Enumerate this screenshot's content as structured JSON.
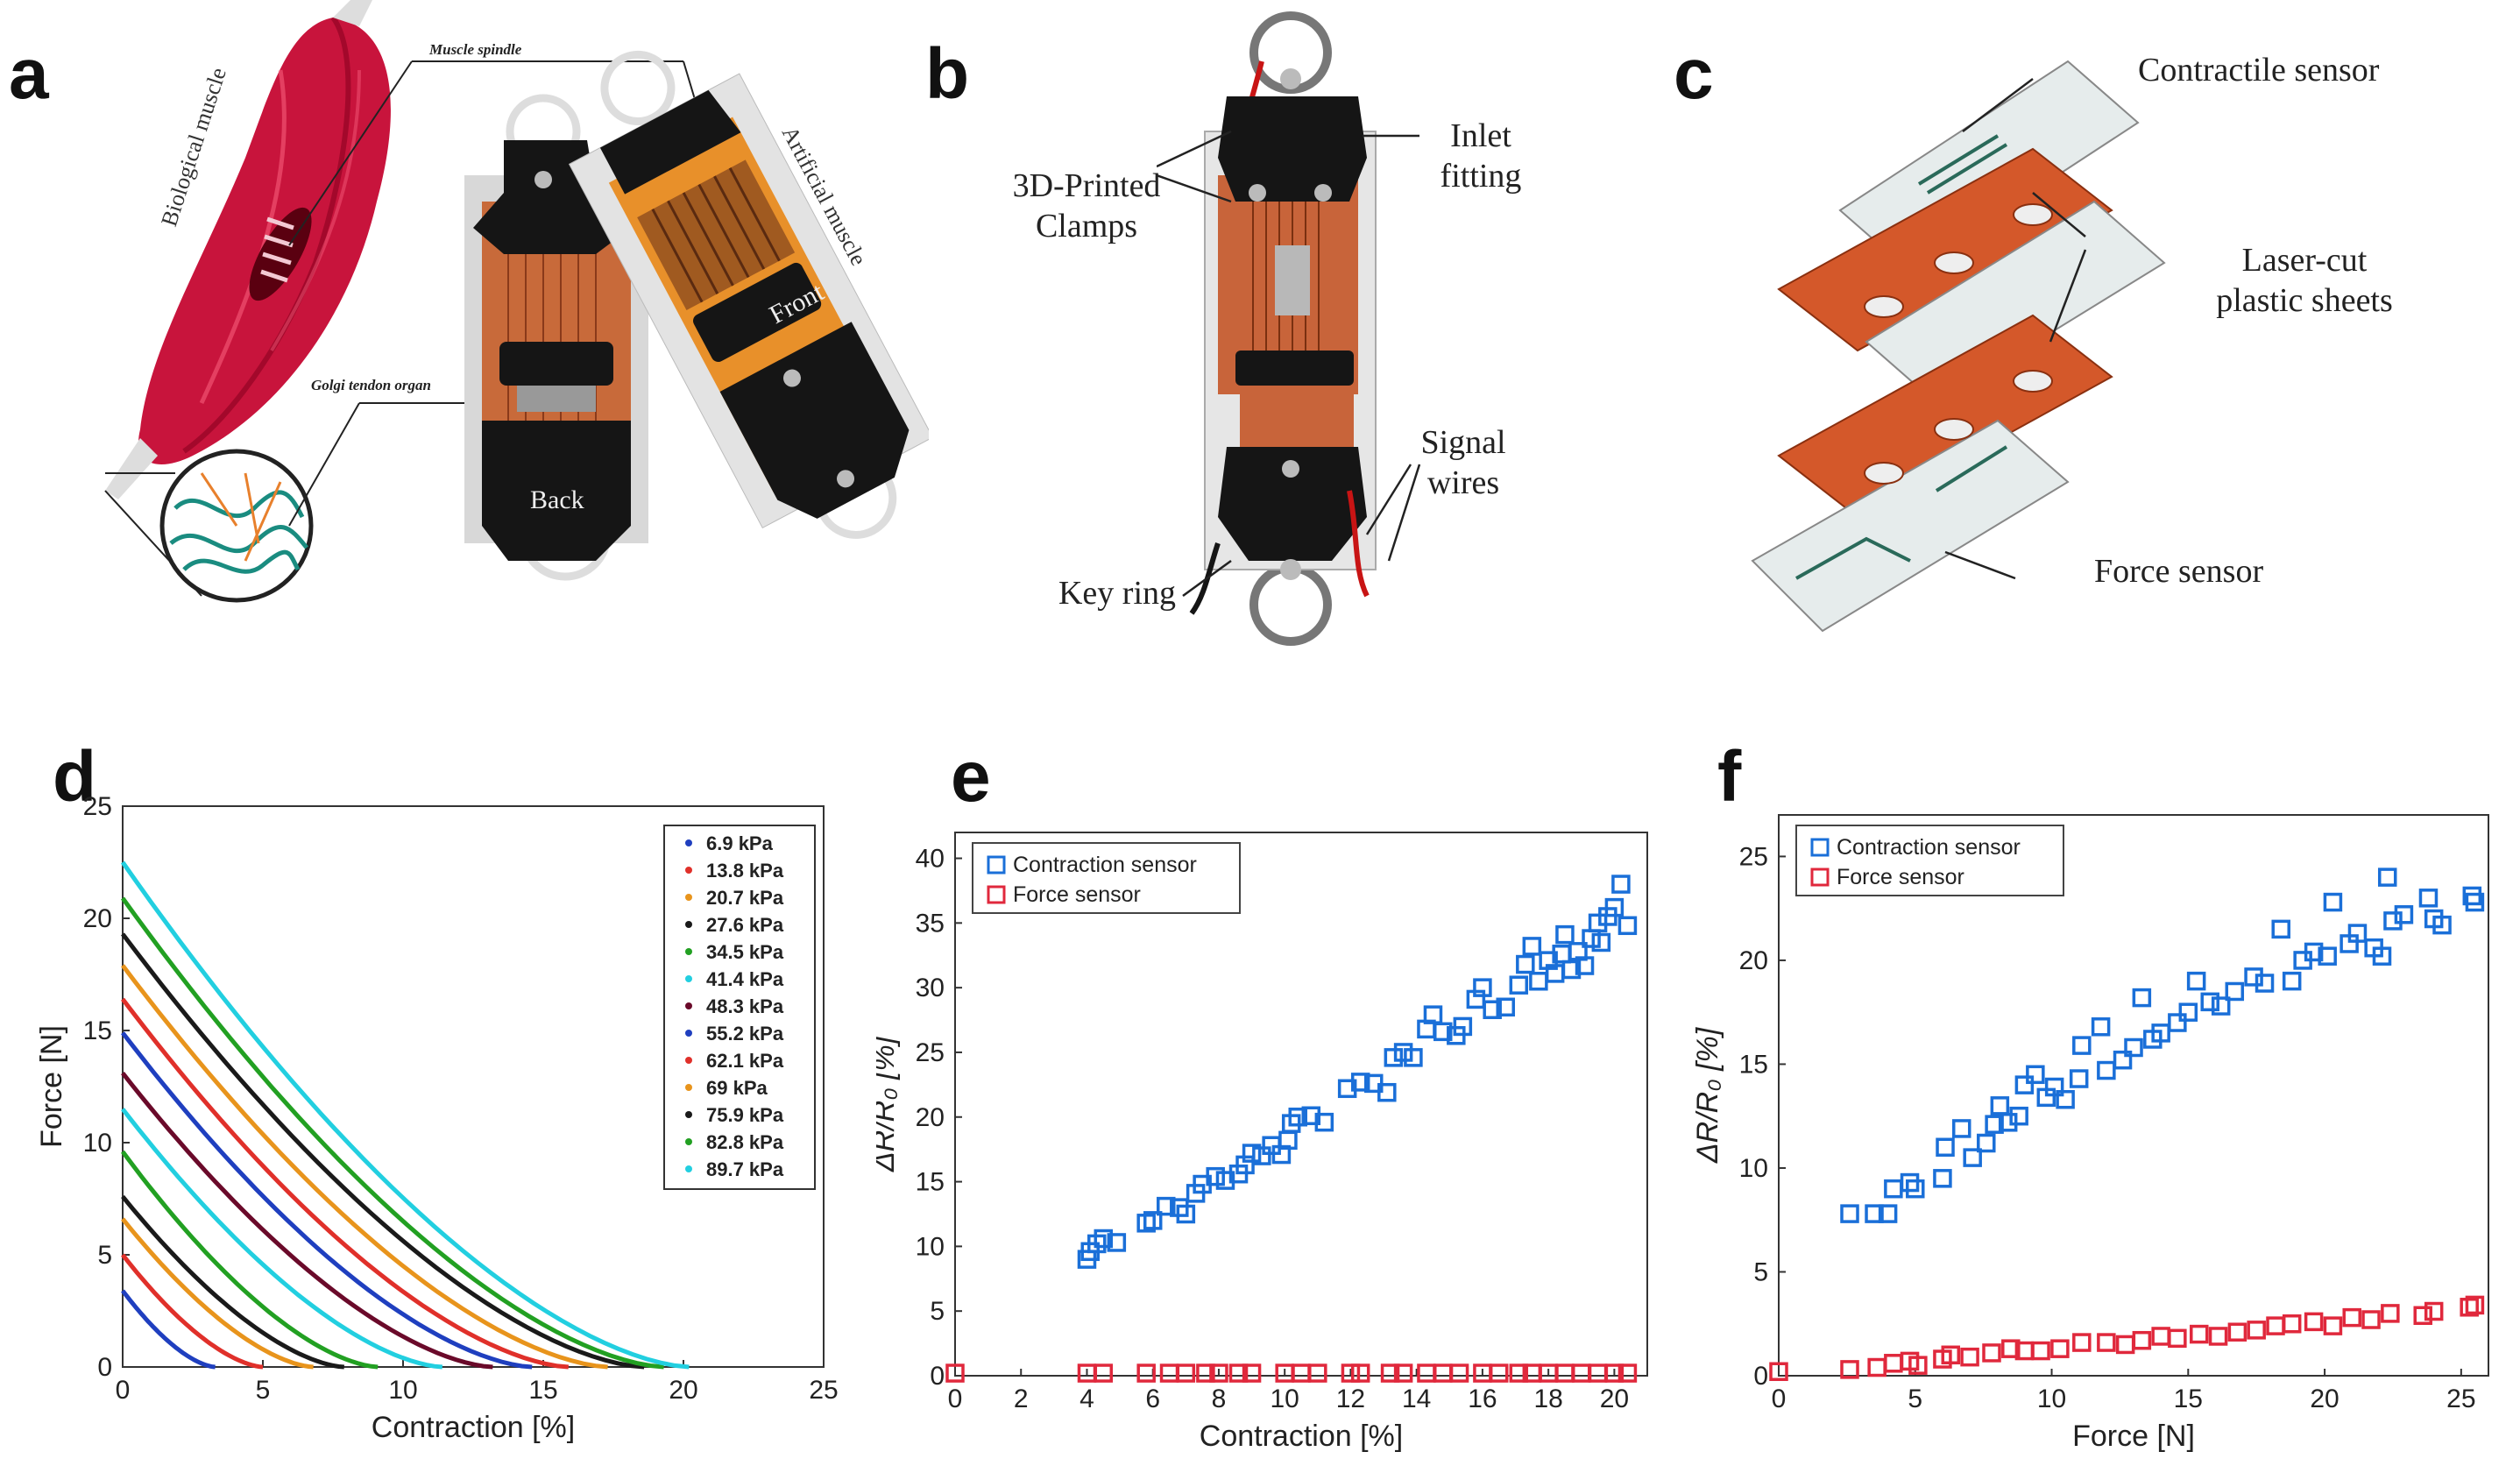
{
  "panels": {
    "a": {
      "label": "a",
      "muscle_spindle": "Muscle spindle",
      "biological_muscle": "Biological muscle",
      "artificial_muscle": "Artificial muscle",
      "golgi_tendon_organ": "Golgi tendon organ",
      "front": "Front",
      "back": "Back"
    },
    "b": {
      "label": "b",
      "clamps": [
        "3D-Printed",
        "Clamps"
      ],
      "inlet": [
        "Inlet",
        "fitting"
      ],
      "signal": [
        "Signal",
        "wires"
      ],
      "key_ring": "Key ring"
    },
    "c": {
      "label": "c",
      "contractile_sensor": "Contractile sensor",
      "laser_cut": [
        "Laser-cut",
        "plastic sheets"
      ],
      "force_sensor": "Force sensor"
    },
    "d": {
      "label": "d"
    },
    "e": {
      "label": "e"
    },
    "f": {
      "label": "f"
    }
  },
  "colors": {
    "muscle_red": "#c8143c",
    "clamp_black": "#151515",
    "copper": "#c8643a",
    "orange_sheet": "#d4582a",
    "sensor_blue": "#1a6fd8",
    "sensor_red": "#e0283c"
  },
  "chart_data": [
    {
      "panel": "d",
      "type": "line",
      "xlabel": "Contraction [%]",
      "ylabel": "Force [N]",
      "xlim": [
        0,
        25
      ],
      "ylim": [
        0,
        25
      ],
      "xticks": [
        0,
        5,
        10,
        15,
        20,
        25
      ],
      "yticks": [
        0,
        5,
        10,
        15,
        20,
        25
      ],
      "legend_position": "top-right",
      "series": [
        {
          "name": "6.9 kPa",
          "color": "#1f3fbf",
          "f0": 3.4,
          "xmax": 3.3
        },
        {
          "name": "13.8 kPa",
          "color": "#e0302a",
          "f0": 5.0,
          "xmax": 5.0
        },
        {
          "name": "20.7 kPa",
          "color": "#e8941c",
          "f0": 6.6,
          "xmax": 6.8
        },
        {
          "name": "27.6 kPa",
          "color": "#1a1a1a",
          "f0": 7.6,
          "xmax": 7.9
        },
        {
          "name": "34.5 kPa",
          "color": "#22a022",
          "f0": 9.6,
          "xmax": 9.1
        },
        {
          "name": "41.4 kPa",
          "color": "#22cfe0",
          "f0": 11.5,
          "xmax": 11.4
        },
        {
          "name": "48.3 kPa",
          "color": "#6a0a2a",
          "f0": 13.1,
          "xmax": 13.2
        },
        {
          "name": "55.2 kPa",
          "color": "#1f3fbf",
          "f0": 14.9,
          "xmax": 14.6
        },
        {
          "name": "62.1 kPa",
          "color": "#e0302a",
          "f0": 16.4,
          "xmax": 15.9
        },
        {
          "name": "69 kPa",
          "color": "#e8941c",
          "f0": 17.9,
          "xmax": 17.3
        },
        {
          "name": "75.9 kPa",
          "color": "#1a1a1a",
          "f0": 19.3,
          "xmax": 18.6
        },
        {
          "name": "82.8 kPa",
          "color": "#22a022",
          "f0": 20.9,
          "xmax": 19.3
        },
        {
          "name": "89.7 kPa",
          "color": "#22cfe0",
          "f0": 22.5,
          "xmax": 20.2
        }
      ]
    },
    {
      "panel": "e",
      "type": "scatter",
      "xlabel": "Contraction [%]",
      "ylabel": "ΔR/R₀ [%]",
      "xlim": [
        0,
        21
      ],
      "ylim": [
        0,
        42
      ],
      "xticks": [
        0,
        2,
        4,
        6,
        8,
        10,
        12,
        14,
        16,
        18,
        20
      ],
      "yticks": [
        0,
        5,
        10,
        15,
        20,
        25,
        30,
        35,
        40
      ],
      "legend_position": "top-left",
      "series": [
        {
          "name": "Contraction sensor",
          "color": "#1a6fd8",
          "points": [
            [
              4,
              9
            ],
            [
              4.1,
              9.6
            ],
            [
              4.3,
              10.2
            ],
            [
              4.5,
              10.6
            ],
            [
              4.9,
              10.3
            ],
            [
              5.8,
              11.8
            ],
            [
              6.0,
              12.0
            ],
            [
              6.4,
              13.1
            ],
            [
              6.8,
              13.0
            ],
            [
              7.0,
              12.5
            ],
            [
              7.3,
              14.1
            ],
            [
              7.5,
              14.8
            ],
            [
              7.9,
              15.4
            ],
            [
              8.2,
              15.1
            ],
            [
              8.6,
              15.6
            ],
            [
              8.8,
              16.3
            ],
            [
              9.0,
              17.2
            ],
            [
              9.3,
              17.0
            ],
            [
              9.6,
              17.8
            ],
            [
              9.9,
              17.1
            ],
            [
              10.1,
              18.2
            ],
            [
              10.2,
              19.5
            ],
            [
              10.4,
              20.0
            ],
            [
              10.8,
              20.1
            ],
            [
              11.2,
              19.6
            ],
            [
              11.9,
              22.2
            ],
            [
              12.3,
              22.7
            ],
            [
              12.7,
              22.6
            ],
            [
              13.1,
              21.9
            ],
            [
              13.3,
              24.6
            ],
            [
              13.6,
              25.0
            ],
            [
              13.9,
              24.6
            ],
            [
              14.3,
              26.8
            ],
            [
              14.5,
              27.9
            ],
            [
              14.8,
              26.6
            ],
            [
              15.2,
              26.3
            ],
            [
              15.4,
              27.0
            ],
            [
              15.8,
              29.1
            ],
            [
              16.0,
              30.0
            ],
            [
              16.3,
              28.3
            ],
            [
              16.7,
              28.5
            ],
            [
              17.3,
              31.8
            ],
            [
              17.5,
              33.2
            ],
            [
              17.7,
              30.5
            ],
            [
              18.0,
              32.1
            ],
            [
              18.2,
              31.1
            ],
            [
              18.5,
              34.1
            ],
            [
              18.7,
              31.4
            ],
            [
              18.9,
              32.8
            ],
            [
              19.1,
              31.7
            ],
            [
              19.3,
              33.8
            ],
            [
              19.5,
              35.0
            ],
            [
              19.8,
              35.5
            ],
            [
              20.0,
              36.2
            ],
            [
              20.2,
              38.0
            ],
            [
              20.4,
              34.8
            ],
            [
              19.6,
              33.5
            ],
            [
              18.4,
              32.6
            ],
            [
              17.1,
              30.2
            ]
          ]
        },
        {
          "name": "Force sensor",
          "color": "#e0283c",
          "points": [
            [
              0,
              0.2
            ],
            [
              4,
              0.2
            ],
            [
              4.5,
              0.2
            ],
            [
              5.8,
              0.2
            ],
            [
              6.5,
              0.2
            ],
            [
              7.0,
              0.2
            ],
            [
              7.6,
              0.2
            ],
            [
              8.0,
              0.2
            ],
            [
              8.6,
              0.2
            ],
            [
              9.0,
              0.2
            ],
            [
              10.0,
              0.2
            ],
            [
              10.5,
              0.2
            ],
            [
              11.0,
              0.2
            ],
            [
              12.0,
              0.2
            ],
            [
              12.3,
              0.2
            ],
            [
              13.2,
              0.2
            ],
            [
              13.6,
              0.2
            ],
            [
              14.3,
              0.2
            ],
            [
              14.8,
              0.2
            ],
            [
              15.3,
              0.2
            ],
            [
              16.0,
              0.2
            ],
            [
              16.5,
              0.2
            ],
            [
              17.1,
              0.2
            ],
            [
              17.5,
              0.2
            ],
            [
              18.0,
              0.2
            ],
            [
              18.5,
              0.2
            ],
            [
              19.0,
              0.2
            ],
            [
              19.5,
              0.2
            ],
            [
              20.0,
              0.2
            ],
            [
              20.4,
              0.2
            ]
          ]
        }
      ]
    },
    {
      "panel": "f",
      "type": "scatter",
      "xlabel": "Force [N]",
      "ylabel": "ΔR/R₀ [%]",
      "xlim": [
        0,
        26
      ],
      "ylim": [
        0,
        27
      ],
      "xticks": [
        0,
        5,
        10,
        15,
        20,
        25
      ],
      "yticks": [
        0,
        5,
        10,
        15,
        20,
        25
      ],
      "legend_position": "top-left",
      "series": [
        {
          "name": "Contraction sensor",
          "color": "#1a6fd8",
          "points": [
            [
              2.6,
              7.8
            ],
            [
              3.5,
              7.8
            ],
            [
              4.0,
              7.8
            ],
            [
              4.2,
              9.0
            ],
            [
              4.8,
              9.3
            ],
            [
              5.0,
              9.0
            ],
            [
              6.0,
              9.5
            ],
            [
              6.1,
              11.0
            ],
            [
              6.7,
              11.9
            ],
            [
              7.1,
              10.5
            ],
            [
              7.6,
              11.2
            ],
            [
              7.9,
              12.1
            ],
            [
              8.1,
              13.0
            ],
            [
              8.4,
              12.2
            ],
            [
              8.8,
              12.5
            ],
            [
              9.0,
              14.0
            ],
            [
              9.4,
              14.5
            ],
            [
              9.8,
              13.4
            ],
            [
              10.1,
              13.9
            ],
            [
              10.5,
              13.3
            ],
            [
              11.0,
              14.3
            ],
            [
              11.1,
              15.9
            ],
            [
              11.8,
              16.8
            ],
            [
              12.0,
              14.7
            ],
            [
              12.6,
              15.2
            ],
            [
              13.0,
              15.8
            ],
            [
              13.3,
              18.2
            ],
            [
              13.7,
              16.2
            ],
            [
              14.0,
              16.5
            ],
            [
              14.6,
              17.0
            ],
            [
              15.0,
              17.5
            ],
            [
              15.3,
              19.0
            ],
            [
              15.8,
              18.0
            ],
            [
              16.2,
              17.8
            ],
            [
              16.7,
              18.5
            ],
            [
              17.4,
              19.2
            ],
            [
              17.8,
              18.9
            ],
            [
              18.4,
              21.5
            ],
            [
              18.8,
              19.0
            ],
            [
              19.2,
              20.0
            ],
            [
              19.6,
              20.4
            ],
            [
              20.1,
              20.2
            ],
            [
              20.3,
              22.8
            ],
            [
              20.9,
              20.8
            ],
            [
              21.2,
              21.3
            ],
            [
              21.8,
              20.6
            ],
            [
              22.1,
              20.2
            ],
            [
              22.3,
              24.0
            ],
            [
              22.5,
              21.9
            ],
            [
              22.9,
              22.2
            ],
            [
              23.8,
              23.0
            ],
            [
              24.0,
              22.0
            ],
            [
              24.3,
              21.7
            ],
            [
              25.4,
              23.1
            ],
            [
              25.5,
              22.8
            ]
          ]
        },
        {
          "name": "Force sensor",
          "color": "#e0283c",
          "points": [
            [
              0,
              0.2
            ],
            [
              2.6,
              0.3
            ],
            [
              3.6,
              0.4
            ],
            [
              4.2,
              0.6
            ],
            [
              4.8,
              0.7
            ],
            [
              5.1,
              0.5
            ],
            [
              6.0,
              0.8
            ],
            [
              6.3,
              1.0
            ],
            [
              7.0,
              0.9
            ],
            [
              7.8,
              1.1
            ],
            [
              8.5,
              1.3
            ],
            [
              9.0,
              1.2
            ],
            [
              9.6,
              1.2
            ],
            [
              10.3,
              1.3
            ],
            [
              11.1,
              1.6
            ],
            [
              12.0,
              1.6
            ],
            [
              12.7,
              1.5
            ],
            [
              13.3,
              1.7
            ],
            [
              14.0,
              1.9
            ],
            [
              14.6,
              1.8
            ],
            [
              15.4,
              2.0
            ],
            [
              16.1,
              1.9
            ],
            [
              16.8,
              2.1
            ],
            [
              17.5,
              2.2
            ],
            [
              18.2,
              2.4
            ],
            [
              18.8,
              2.5
            ],
            [
              19.6,
              2.6
            ],
            [
              20.3,
              2.4
            ],
            [
              21.0,
              2.8
            ],
            [
              21.7,
              2.7
            ],
            [
              22.4,
              3.0
            ],
            [
              23.6,
              2.9
            ],
            [
              24.0,
              3.1
            ],
            [
              25.3,
              3.3
            ],
            [
              25.5,
              3.4
            ]
          ]
        }
      ]
    }
  ]
}
